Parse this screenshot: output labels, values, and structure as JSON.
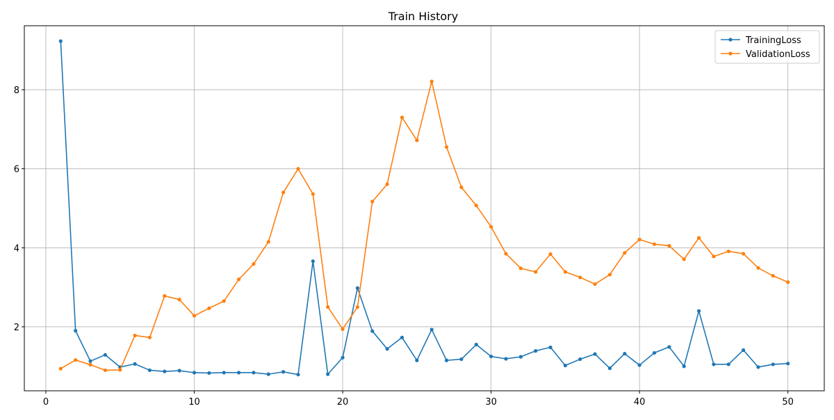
{
  "chart_data": {
    "type": "line",
    "title": "Train History",
    "xlabel": "",
    "ylabel": "",
    "xlim": [
      -1.45,
      52.45
    ],
    "ylim": [
      0.38,
      9.62
    ],
    "xticks": [
      0,
      10,
      20,
      30,
      40,
      50
    ],
    "yticks": [
      2,
      4,
      6,
      8
    ],
    "grid": true,
    "legend_position": "top-right",
    "x": [
      1,
      2,
      3,
      4,
      5,
      6,
      7,
      8,
      9,
      10,
      11,
      12,
      13,
      14,
      15,
      16,
      17,
      18,
      19,
      20,
      21,
      22,
      23,
      24,
      25,
      26,
      27,
      28,
      29,
      30,
      31,
      32,
      33,
      34,
      35,
      36,
      37,
      38,
      39,
      40,
      41,
      42,
      43,
      44,
      45,
      46,
      47,
      48,
      49,
      50
    ],
    "series": [
      {
        "name": "TrainingLoss",
        "color": "#1f77b4",
        "values": [
          9.23,
          1.9,
          1.13,
          1.29,
          0.98,
          1.06,
          0.9,
          0.87,
          0.89,
          0.84,
          0.83,
          0.84,
          0.84,
          0.84,
          0.8,
          0.86,
          0.79,
          3.66,
          0.8,
          1.22,
          2.98,
          1.89,
          1.44,
          1.73,
          1.15,
          1.93,
          1.15,
          1.18,
          1.55,
          1.25,
          1.19,
          1.24,
          1.39,
          1.48,
          1.02,
          1.18,
          1.31,
          0.95,
          1.32,
          1.03,
          1.34,
          1.49,
          1.0,
          2.4,
          1.05,
          1.05,
          1.41,
          0.98,
          1.05,
          1.07
        ]
      },
      {
        "name": "ValidationLoss",
        "color": "#ff7f0e",
        "values": [
          0.94,
          1.16,
          1.04,
          0.9,
          0.91,
          1.78,
          1.73,
          2.78,
          2.69,
          2.28,
          2.47,
          2.65,
          3.2,
          3.59,
          4.15,
          5.4,
          6.0,
          5.36,
          2.5,
          1.94,
          2.5,
          5.17,
          5.61,
          7.3,
          6.72,
          8.21,
          6.55,
          5.53,
          5.07,
          4.53,
          3.85,
          3.48,
          3.39,
          3.84,
          3.39,
          3.25,
          3.08,
          3.32,
          3.87,
          4.21,
          4.09,
          4.05,
          3.71,
          4.25,
          3.78,
          3.91,
          3.85,
          3.49,
          3.29,
          3.13
        ]
      }
    ]
  }
}
